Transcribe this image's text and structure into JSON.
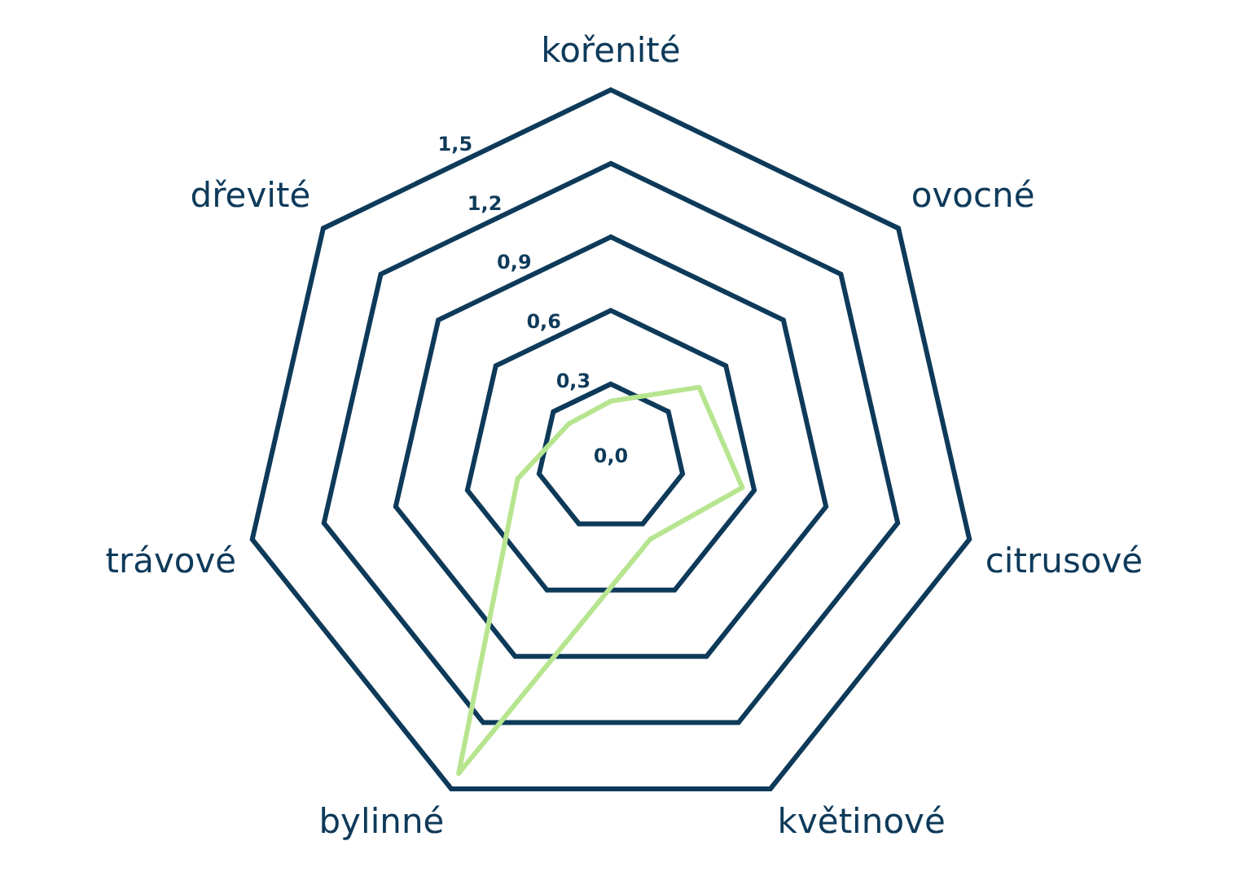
{
  "chart_data": {
    "type": "radar",
    "categories": [
      "kořenité",
      "ovocné",
      "citrusové",
      "květinové",
      "bylinné",
      "trávové",
      "dřevité"
    ],
    "series": [
      {
        "color": "#b7e58f",
        "values": [
          0.23,
          0.46,
          0.55,
          0.37,
          1.43,
          0.39,
          0.22
        ]
      }
    ],
    "ylim": [
      0,
      1.5
    ],
    "yticks": [
      {
        "value": 0,
        "label": "0,0"
      },
      {
        "value": 0.3,
        "label": "0,3"
      },
      {
        "value": 0.6,
        "label": "0,6"
      },
      {
        "value": 0.9,
        "label": "0,9"
      },
      {
        "value": 1.2,
        "label": "1,2"
      },
      {
        "value": 1.5,
        "label": "1,5"
      }
    ],
    "grid": true,
    "marker": "none",
    "legend": false
  }
}
